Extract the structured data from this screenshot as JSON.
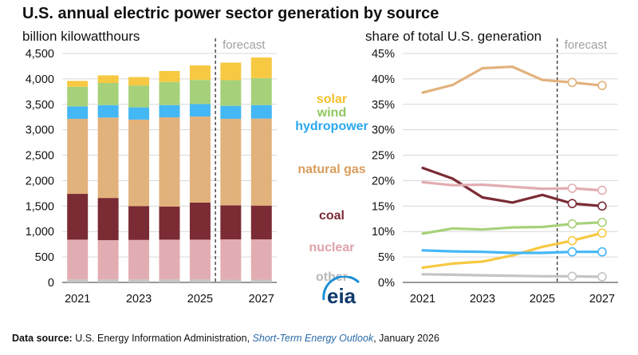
{
  "title": "U.S. annual electric power sector generation by source",
  "left_unit": "billion kilowatthours",
  "right_unit": "share of total U.S. generation",
  "forecast_label": "forecast",
  "logo_text": "eia",
  "source": {
    "label": "Data source:",
    "org": " U.S. Energy Information Administration, ",
    "report": "Short-Term Energy Outlook",
    "date": ", January 2026"
  },
  "colors": {
    "other": "#c4c4c4",
    "nuclear": "#e2adb2",
    "coal": "#7b2b34",
    "natural_gas": "#e2b27c",
    "hydropower": "#44b7f5",
    "wind": "#a6d17a",
    "solar": "#f7c842"
  },
  "chart_data": [
    {
      "type": "bar",
      "stacked": true,
      "ylabel": "billion kilowatthours",
      "ylim": [
        0,
        4500
      ],
      "yticks": [
        "0",
        "500",
        "1,000",
        "1,500",
        "2,000",
        "2,500",
        "3,000",
        "3,500",
        "4,000",
        "4,500"
      ],
      "categories": [
        2021,
        2022,
        2023,
        2024,
        2025,
        2026,
        2027
      ],
      "xtick_labels": [
        "2021",
        "2023",
        "2025",
        "2027"
      ],
      "forecast_from": 2026,
      "series": [
        {
          "name": "other",
          "values": [
            60,
            60,
            60,
            60,
            60,
            55,
            55
          ]
        },
        {
          "name": "nuclear",
          "values": [
            780,
            770,
            775,
            780,
            780,
            790,
            790
          ]
        },
        {
          "name": "coal",
          "values": [
            900,
            830,
            665,
            650,
            730,
            670,
            665
          ]
        },
        {
          "name": "natural gas",
          "values": [
            1475,
            1580,
            1700,
            1755,
            1690,
            1700,
            1710
          ]
        },
        {
          "name": "hydropower",
          "values": [
            245,
            245,
            240,
            240,
            245,
            255,
            265
          ]
        },
        {
          "name": "wind",
          "values": [
            385,
            435,
            430,
            455,
            475,
            505,
            530
          ]
        },
        {
          "name": "solar",
          "values": [
            115,
            150,
            165,
            215,
            285,
            345,
            405
          ]
        }
      ],
      "legend_labels": [
        "solar",
        "wind",
        "hydropower",
        "natural gas",
        "coal",
        "nuclear",
        "other"
      ]
    },
    {
      "type": "line",
      "ylabel": "share of total U.S. generation",
      "ylim": [
        0,
        45
      ],
      "yticks": [
        "0%",
        "5%",
        "10%",
        "15%",
        "20%",
        "25%",
        "30%",
        "35%",
        "40%",
        "45%"
      ],
      "x": [
        2021,
        2022,
        2023,
        2024,
        2025,
        2026,
        2027
      ],
      "xtick_labels": [
        "2021",
        "2023",
        "2025",
        "2027"
      ],
      "forecast_from": 2026,
      "series": [
        {
          "name": "natural gas",
          "values": [
            37.3,
            38.8,
            42.1,
            42.4,
            39.8,
            39.3,
            38.7
          ]
        },
        {
          "name": "coal",
          "values": [
            22.5,
            20.4,
            16.7,
            15.7,
            17.2,
            15.5,
            15.0
          ]
        },
        {
          "name": "nuclear",
          "values": [
            19.7,
            19.1,
            19.2,
            18.8,
            18.4,
            18.5,
            18.1
          ]
        },
        {
          "name": "wind",
          "values": [
            9.6,
            10.6,
            10.4,
            10.8,
            10.9,
            11.5,
            11.8
          ]
        },
        {
          "name": "solar",
          "values": [
            2.9,
            3.7,
            4.1,
            5.3,
            7.0,
            8.2,
            9.7
          ]
        },
        {
          "name": "hydropower",
          "values": [
            6.3,
            6.1,
            6.0,
            5.8,
            5.8,
            6.0,
            6.0
          ]
        },
        {
          "name": "other",
          "values": [
            1.6,
            1.5,
            1.4,
            1.3,
            1.2,
            1.2,
            1.1
          ]
        }
      ]
    }
  ]
}
